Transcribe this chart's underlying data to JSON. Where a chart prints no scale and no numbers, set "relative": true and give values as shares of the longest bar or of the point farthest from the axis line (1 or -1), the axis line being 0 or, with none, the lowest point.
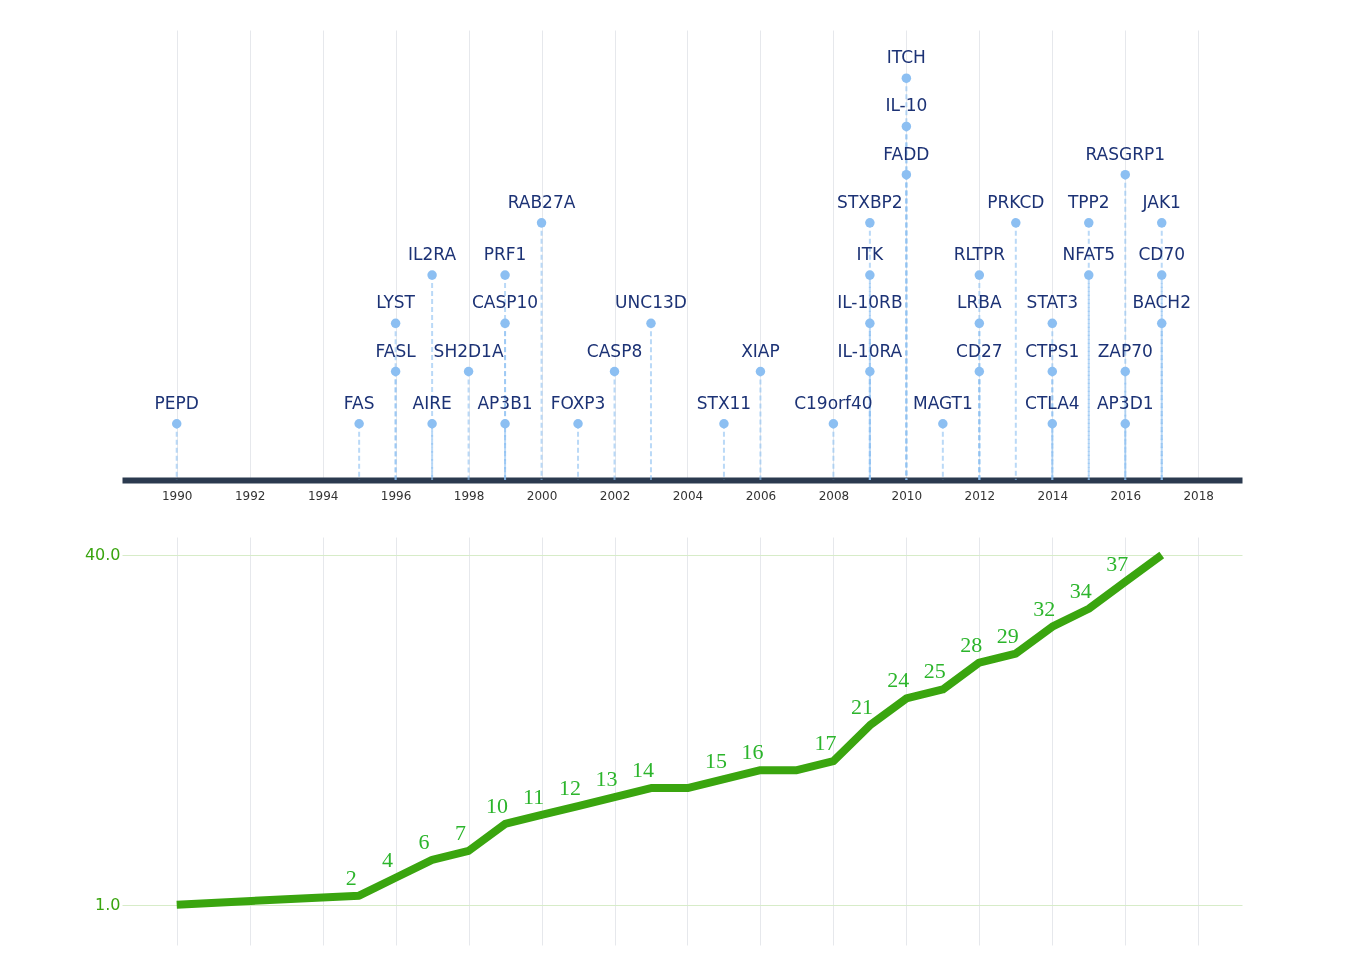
{
  "chart_data": [
    {
      "type": "lollipop",
      "relative": true,
      "color": "#8cbff2",
      "marker": "circle",
      "line_style": "dashed",
      "grid": "x",
      "xlim": [
        1988.5,
        2019.2
      ],
      "xticks": [
        1990,
        1992,
        1994,
        1996,
        1998,
        2000,
        2002,
        2004,
        2006,
        2008,
        2010,
        2012,
        2014,
        2016,
        2018
      ],
      "x": [
        1990,
        1995,
        1996,
        1996,
        1997,
        1997,
        1998,
        1999,
        1999,
        1999,
        2000,
        2001,
        2002,
        2003,
        2005,
        2006,
        2008,
        2009,
        2009,
        2009,
        2009,
        2010,
        2010,
        2010,
        2011,
        2012,
        2012,
        2012,
        2013,
        2014,
        2014,
        2014,
        2015,
        2015,
        2016,
        2016,
        2016,
        2017,
        2017,
        2017
      ],
      "values": [
        0.14,
        0.14,
        0.27,
        0.39,
        0.14,
        0.51,
        0.27,
        0.14,
        0.39,
        0.51,
        0.64,
        0.14,
        0.27,
        0.39,
        0.14,
        0.27,
        0.14,
        0.27,
        0.39,
        0.51,
        0.64,
        0.76,
        0.88,
        1,
        0.14,
        0.27,
        0.39,
        0.51,
        0.64,
        0.14,
        0.27,
        0.39,
        0.51,
        0.64,
        0.14,
        0.27,
        0.76,
        0.39,
        0.51,
        0.64
      ],
      "annotations": [
        {
          "text": "PEPD",
          "x": 1990,
          "y": 0.14
        },
        {
          "text": "FAS",
          "x": 1995,
          "y": 0.14
        },
        {
          "text": "FASL",
          "x": 1996,
          "y": 0.27
        },
        {
          "text": "LYST",
          "x": 1996,
          "y": 0.39
        },
        {
          "text": "AIRE",
          "x": 1997,
          "y": 0.14
        },
        {
          "text": "IL2RA",
          "x": 1997,
          "y": 0.51
        },
        {
          "text": "SH2D1A",
          "x": 1998,
          "y": 0.27
        },
        {
          "text": "AP3B1",
          "x": 1999,
          "y": 0.14
        },
        {
          "text": "CASP10",
          "x": 1999,
          "y": 0.39
        },
        {
          "text": "PRF1",
          "x": 1999,
          "y": 0.51
        },
        {
          "text": "RAB27A",
          "x": 2000,
          "y": 0.64
        },
        {
          "text": "FOXP3",
          "x": 2001,
          "y": 0.14
        },
        {
          "text": "CASP8",
          "x": 2002,
          "y": 0.27
        },
        {
          "text": "UNC13D",
          "x": 2003,
          "y": 0.39
        },
        {
          "text": "STX11",
          "x": 2005,
          "y": 0.14
        },
        {
          "text": "XIAP",
          "x": 2006,
          "y": 0.27
        },
        {
          "text": "C19orf40",
          "x": 2008,
          "y": 0.14
        },
        {
          "text": "IL-10RA",
          "x": 2009,
          "y": 0.27
        },
        {
          "text": "IL-10RB",
          "x": 2009,
          "y": 0.39
        },
        {
          "text": "ITK",
          "x": 2009,
          "y": 0.51
        },
        {
          "text": "STXBP2",
          "x": 2009,
          "y": 0.64
        },
        {
          "text": "FADD",
          "x": 2010,
          "y": 0.76
        },
        {
          "text": "IL-10",
          "x": 2010,
          "y": 0.88
        },
        {
          "text": "ITCH",
          "x": 2010,
          "y": 1
        },
        {
          "text": "MAGT1",
          "x": 2011,
          "y": 0.14
        },
        {
          "text": "CD27",
          "x": 2012,
          "y": 0.27
        },
        {
          "text": "LRBA",
          "x": 2012,
          "y": 0.39
        },
        {
          "text": "RLTPR",
          "x": 2012,
          "y": 0.51
        },
        {
          "text": "PRKCD",
          "x": 2013,
          "y": 0.64
        },
        {
          "text": "CTLA4",
          "x": 2014,
          "y": 0.14
        },
        {
          "text": "CTPS1",
          "x": 2014,
          "y": 0.27
        },
        {
          "text": "STAT3",
          "x": 2014,
          "y": 0.39
        },
        {
          "text": "NFAT5",
          "x": 2015,
          "y": 0.51
        },
        {
          "text": "TPP2",
          "x": 2015,
          "y": 0.64
        },
        {
          "text": "AP3D1",
          "x": 2016,
          "y": 0.14
        },
        {
          "text": "ZAP70",
          "x": 2016,
          "y": 0.27
        },
        {
          "text": "RASGRP1",
          "x": 2016,
          "y": 0.76
        },
        {
          "text": "BACH2",
          "x": 2017,
          "y": 0.39
        },
        {
          "text": "CD70",
          "x": 2017,
          "y": 0.51
        },
        {
          "text": "JAK1",
          "x": 2017,
          "y": 0.64
        }
      ]
    },
    {
      "type": "line",
      "color": "#3aa50f",
      "marker": "none",
      "grid": true,
      "tick_labels": "y",
      "xlim": [
        1988.5,
        2019.2
      ],
      "xticks": [
        1990,
        1992,
        1994,
        1996,
        1998,
        2000,
        2002,
        2004,
        2006,
        2008,
        2010,
        2012,
        2014,
        2016,
        2018
      ],
      "ylim": [
        -3.5,
        42
      ],
      "yticks": [
        {
          "value": 1,
          "label": "1.0"
        },
        {
          "value": 40,
          "label": "40.0"
        }
      ],
      "x": [
        1990,
        1995,
        1996,
        1997,
        1998,
        1999,
        2000,
        2001,
        2002,
        2003,
        2004,
        2005,
        2006,
        2007,
        2008,
        2009,
        2010,
        2011,
        2012,
        2013,
        2014,
        2015,
        2016,
        2017
      ],
      "values": [
        1,
        2,
        4,
        6,
        7,
        10,
        11,
        12,
        13,
        14,
        14,
        15,
        16,
        16,
        17,
        21,
        24,
        25,
        28,
        29,
        32,
        34,
        37,
        40
      ],
      "value_labels": [
        null,
        "2",
        "4",
        "6",
        "7",
        "10",
        "11",
        "12",
        "13",
        "14",
        null,
        "15",
        "16",
        null,
        "17",
        "21",
        "24",
        "25",
        "28",
        "29",
        "32",
        "34",
        "37",
        null
      ]
    }
  ]
}
